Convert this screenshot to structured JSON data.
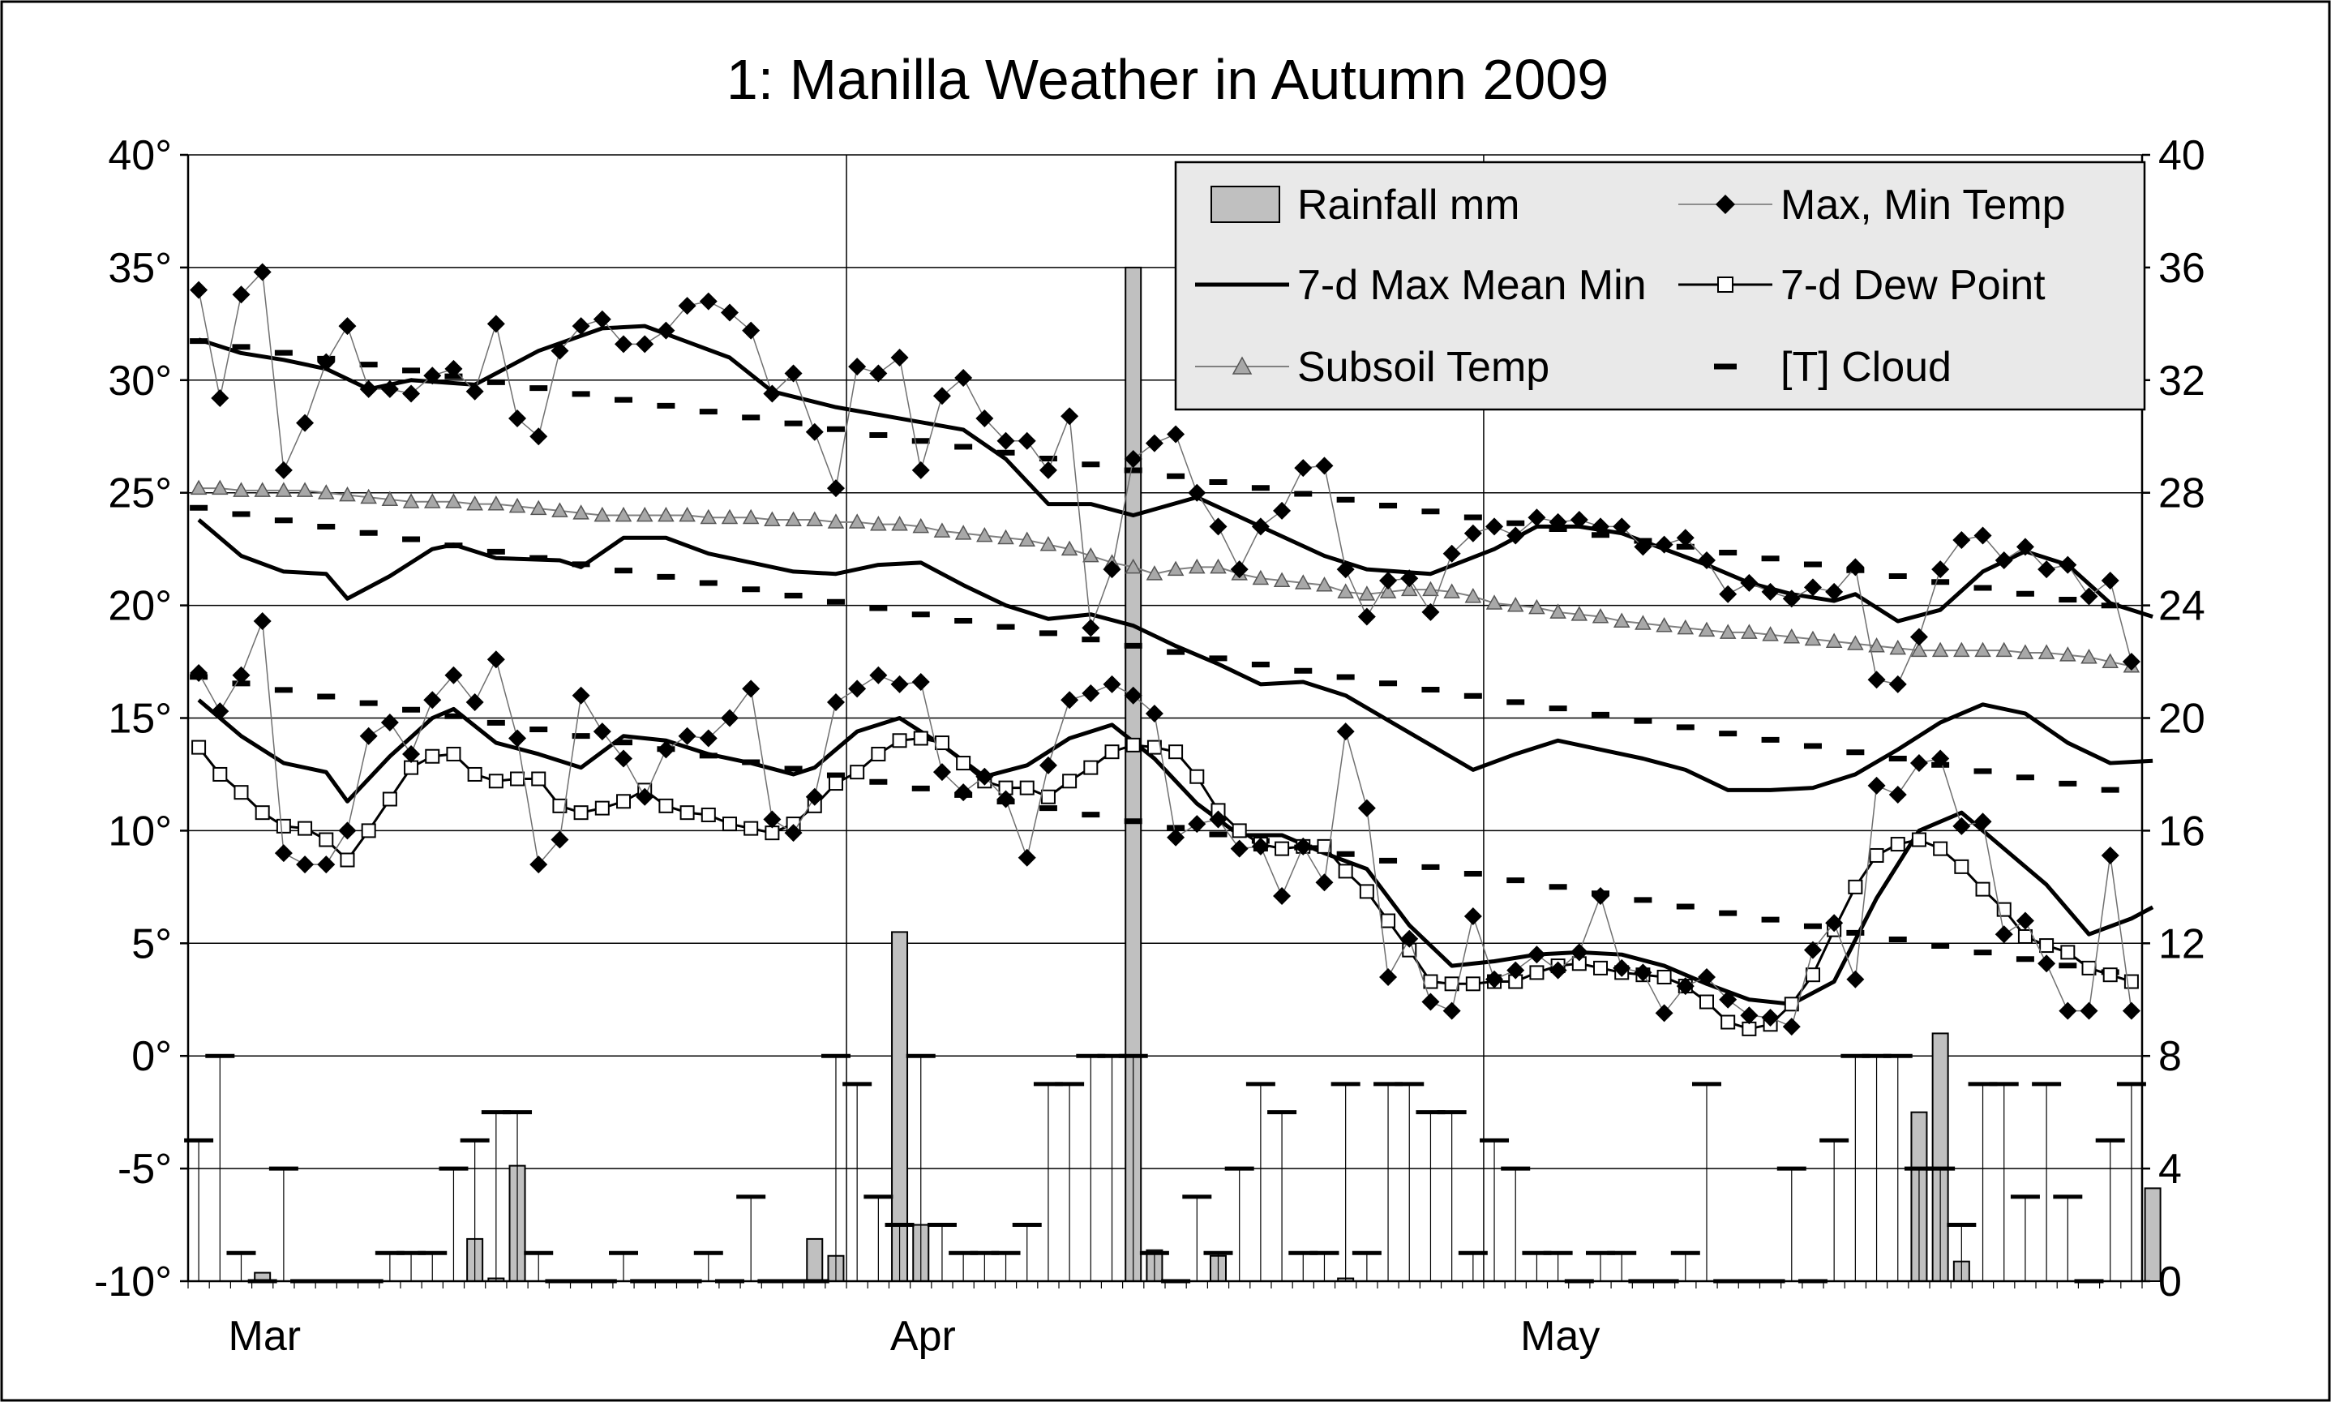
{
  "chart_data": {
    "type": "line",
    "title": "1: Manilla Weather in Autumn 2009",
    "x_axis": {
      "unit": "day",
      "range": [
        0,
        92
      ],
      "month_ticks": [
        {
          "label": "Mar",
          "day": 0
        },
        {
          "label": "Apr",
          "day": 31
        },
        {
          "label": "May",
          "day": 61
        }
      ]
    },
    "y_left": {
      "range": [
        -10,
        40
      ],
      "tick_labels": [
        "-10°",
        "-5°",
        "0°",
        "5°",
        "10°",
        "15°",
        "20°",
        "25°",
        "30°",
        "35°",
        "40°"
      ]
    },
    "y_right": {
      "range": [
        0,
        40
      ],
      "tick_labels": [
        "0",
        "4",
        "8",
        "12",
        "16",
        "20",
        "24",
        "28",
        "32",
        "36",
        "40"
      ]
    },
    "legend": {
      "position": "top-right",
      "entries": [
        {
          "label": "Rainfall mm",
          "symbol": "bar"
        },
        {
          "label": "Max, Min Temp",
          "symbol": "diamond-line"
        },
        {
          "label": "7-d Max Mean Min",
          "symbol": "thick-line"
        },
        {
          "label": "7-d Dew Point",
          "symbol": "square-line"
        },
        {
          "label": "Subsoil Temp",
          "symbol": "triangle-line"
        },
        {
          "label": "[T] Cloud",
          "symbol": "dash"
        }
      ]
    },
    "grid": true,
    "series": [
      {
        "name": "Max, Min Temp",
        "axis": "left",
        "max": [
          34.0,
          29.2,
          33.8,
          34.8,
          26.0,
          28.1,
          30.8,
          32.4,
          29.6,
          29.6,
          29.4,
          30.2,
          30.5,
          29.5,
          32.5,
          28.3,
          27.5,
          31.3,
          32.4,
          32.7,
          31.6,
          31.6,
          32.2,
          33.3,
          33.5,
          33.0,
          32.2,
          29.4,
          30.3,
          27.7,
          25.2,
          30.6,
          30.3,
          31.0,
          26.0,
          29.3,
          30.1,
          28.3,
          27.3,
          27.3,
          26.0,
          28.4,
          19.0,
          21.6,
          26.5,
          27.2,
          27.6,
          25.0,
          23.5,
          21.6,
          23.5,
          24.2,
          26.1,
          26.2,
          21.6,
          19.5,
          21.1,
          21.2,
          19.7,
          22.3,
          23.2,
          23.5,
          23.1,
          23.9,
          23.7,
          23.8,
          23.5,
          23.5,
          22.6,
          22.7,
          23.0,
          22.0,
          20.5,
          21.0,
          20.6,
          20.3,
          20.8,
          20.6,
          21.7,
          16.7,
          16.5,
          18.6,
          21.6,
          22.9,
          23.1,
          22.0,
          22.6,
          21.6,
          21.8,
          20.4,
          21.1,
          17.5
        ],
        "min": [
          17.0,
          15.3,
          16.9,
          19.3,
          9.0,
          8.5,
          8.5,
          10.0,
          14.2,
          14.8,
          13.4,
          15.8,
          16.9,
          15.7,
          17.6,
          14.1,
          8.5,
          9.6,
          16.0,
          14.4,
          13.2,
          11.5,
          13.6,
          14.2,
          14.1,
          15.0,
          16.3,
          10.5,
          9.9,
          11.5,
          15.7,
          16.3,
          16.9,
          16.5,
          16.6,
          12.6,
          11.7,
          12.4,
          11.4,
          8.8,
          12.9,
          15.8,
          16.1,
          16.5,
          16.0,
          15.2,
          9.7,
          10.3,
          10.5,
          9.2,
          9.3,
          7.1,
          9.3,
          7.7,
          14.4,
          11.0,
          3.5,
          5.2,
          2.4,
          2.0,
          6.2,
          3.4,
          3.8,
          4.5,
          3.8,
          4.6,
          7.1,
          3.9,
          3.7,
          1.9,
          3.1,
          3.5,
          2.5,
          1.8,
          1.7,
          1.3,
          4.7,
          5.9,
          3.4,
          12.0,
          11.6,
          13.0,
          13.2,
          10.2,
          10.4,
          5.4,
          6.0,
          4.1,
          2.0,
          2.0,
          8.9,
          2.0
        ]
      },
      {
        "name": "7-d Max Mean Min",
        "axis": "left",
        "max_anchors": [
          [
            0,
            31.8
          ],
          [
            2,
            31.2
          ],
          [
            4,
            30.9
          ],
          [
            6,
            30.5
          ],
          [
            8,
            29.6
          ],
          [
            10,
            30.0
          ],
          [
            13,
            29.8
          ],
          [
            16,
            31.3
          ],
          [
            19,
            32.3
          ],
          [
            21,
            32.4
          ],
          [
            23,
            31.7
          ],
          [
            25,
            31.0
          ],
          [
            27,
            29.5
          ],
          [
            30,
            28.8
          ],
          [
            33,
            28.3
          ],
          [
            36,
            27.8
          ],
          [
            38,
            26.5
          ],
          [
            40,
            24.5
          ],
          [
            42,
            24.5
          ],
          [
            44,
            24.0
          ],
          [
            47,
            24.8
          ],
          [
            50,
            23.5
          ],
          [
            53,
            22.2
          ],
          [
            55,
            21.6
          ],
          [
            58,
            21.4
          ],
          [
            61,
            22.5
          ],
          [
            63,
            23.5
          ],
          [
            65,
            23.5
          ],
          [
            67,
            23.2
          ],
          [
            69,
            22.5
          ],
          [
            71,
            21.8
          ],
          [
            73,
            21.0
          ],
          [
            75,
            20.5
          ],
          [
            77,
            20.2
          ],
          [
            78,
            20.5
          ],
          [
            80,
            19.3
          ],
          [
            82,
            19.8
          ],
          [
            84,
            21.5
          ],
          [
            86,
            22.4
          ],
          [
            88,
            21.8
          ],
          [
            90,
            20.1
          ],
          [
            92,
            19.5
          ]
        ],
        "mean_anchors": [
          [
            0,
            23.8
          ],
          [
            2,
            22.2
          ],
          [
            4,
            21.5
          ],
          [
            6,
            21.4
          ],
          [
            7,
            20.3
          ],
          [
            9,
            21.3
          ],
          [
            11,
            22.5
          ],
          [
            12,
            22.7
          ],
          [
            14,
            22.1
          ],
          [
            17,
            22.0
          ],
          [
            18,
            21.7
          ],
          [
            20,
            23.0
          ],
          [
            22,
            23.0
          ],
          [
            24,
            22.3
          ],
          [
            26,
            21.9
          ],
          [
            28,
            21.5
          ],
          [
            30,
            21.4
          ],
          [
            32,
            21.8
          ],
          [
            34,
            21.9
          ],
          [
            36,
            20.9
          ],
          [
            38,
            20.0
          ],
          [
            40,
            19.4
          ],
          [
            42,
            19.6
          ],
          [
            44,
            19.1
          ],
          [
            46,
            18.2
          ],
          [
            48,
            17.4
          ],
          [
            50,
            16.5
          ],
          [
            52,
            16.6
          ],
          [
            54,
            16.0
          ],
          [
            56,
            14.9
          ],
          [
            58,
            13.8
          ],
          [
            60,
            12.7
          ],
          [
            62,
            13.4
          ],
          [
            64,
            14.0
          ],
          [
            66,
            13.6
          ],
          [
            68,
            13.2
          ],
          [
            70,
            12.7
          ],
          [
            72,
            11.8
          ],
          [
            74,
            11.8
          ],
          [
            76,
            11.9
          ],
          [
            78,
            12.5
          ],
          [
            80,
            13.6
          ],
          [
            82,
            14.8
          ],
          [
            84,
            15.6
          ],
          [
            86,
            15.2
          ],
          [
            88,
            13.9
          ],
          [
            90,
            13.0
          ],
          [
            92,
            13.1
          ]
        ],
        "min_anchors": [
          [
            0,
            15.8
          ],
          [
            2,
            14.2
          ],
          [
            4,
            13.0
          ],
          [
            6,
            12.6
          ],
          [
            7,
            11.3
          ],
          [
            9,
            13.3
          ],
          [
            11,
            15.0
          ],
          [
            12,
            15.4
          ],
          [
            14,
            13.9
          ],
          [
            16,
            13.4
          ],
          [
            18,
            12.8
          ],
          [
            20,
            14.2
          ],
          [
            22,
            14.0
          ],
          [
            24,
            13.4
          ],
          [
            26,
            13.0
          ],
          [
            28,
            12.5
          ],
          [
            29,
            12.8
          ],
          [
            31,
            14.4
          ],
          [
            33,
            15.0
          ],
          [
            35,
            13.8
          ],
          [
            37,
            12.4
          ],
          [
            39,
            12.9
          ],
          [
            41,
            14.1
          ],
          [
            43,
            14.7
          ],
          [
            45,
            13.2
          ],
          [
            47,
            11.2
          ],
          [
            49,
            9.8
          ],
          [
            51,
            9.8
          ],
          [
            53,
            9.0
          ],
          [
            55,
            8.3
          ],
          [
            57,
            5.8
          ],
          [
            59,
            4.0
          ],
          [
            61,
            4.2
          ],
          [
            63,
            4.5
          ],
          [
            65,
            4.6
          ],
          [
            67,
            4.5
          ],
          [
            69,
            4.0
          ],
          [
            71,
            3.2
          ],
          [
            73,
            2.5
          ],
          [
            75,
            2.3
          ],
          [
            77,
            3.3
          ],
          [
            79,
            7.0
          ],
          [
            81,
            10.0
          ],
          [
            83,
            10.8
          ],
          [
            85,
            9.2
          ],
          [
            87,
            7.6
          ],
          [
            89,
            5.4
          ],
          [
            91,
            6.1
          ],
          [
            92,
            6.6
          ]
        ]
      },
      {
        "name": "7-d Dew Point",
        "axis": "left",
        "values": [
          13.7,
          12.5,
          11.7,
          10.8,
          10.2,
          10.1,
          9.6,
          8.7,
          10.0,
          11.4,
          12.8,
          13.3,
          13.4,
          12.5,
          12.2,
          12.3,
          12.3,
          11.1,
          10.8,
          11.0,
          11.3,
          11.8,
          11.1,
          10.8,
          10.7,
          10.3,
          10.1,
          9.9,
          10.3,
          11.1,
          12.1,
          12.6,
          13.4,
          14.0,
          14.1,
          13.9,
          13.0,
          12.2,
          11.9,
          11.9,
          11.5,
          12.2,
          12.8,
          13.5,
          13.8,
          13.7,
          13.5,
          12.4,
          10.9,
          10.0,
          9.4,
          9.2,
          9.3,
          9.3,
          8.2,
          7.3,
          6.0,
          4.7,
          3.3,
          3.2,
          3.2,
          3.3,
          3.3,
          3.7,
          4.0,
          4.1,
          3.9,
          3.7,
          3.6,
          3.5,
          3.1,
          2.4,
          1.5,
          1.2,
          1.4,
          2.3,
          3.6,
          5.6,
          7.5,
          8.9,
          9.4,
          9.6,
          9.2,
          8.4,
          7.4,
          6.5,
          5.3,
          4.9,
          4.6,
          3.9,
          3.6,
          3.3
        ]
      },
      {
        "name": "Subsoil Temp",
        "axis": "left",
        "values": [
          25.2,
          25.2,
          25.1,
          25.1,
          25.1,
          25.1,
          25.0,
          24.9,
          24.8,
          24.7,
          24.6,
          24.6,
          24.6,
          24.5,
          24.5,
          24.4,
          24.3,
          24.2,
          24.1,
          24.0,
          24.0,
          24.0,
          24.0,
          24.0,
          23.9,
          23.9,
          23.9,
          23.8,
          23.8,
          23.8,
          23.7,
          23.7,
          23.6,
          23.6,
          23.5,
          23.3,
          23.2,
          23.1,
          23.0,
          22.9,
          22.7,
          22.5,
          22.2,
          21.9,
          21.7,
          21.4,
          21.6,
          21.7,
          21.7,
          21.4,
          21.2,
          21.1,
          21.0,
          20.9,
          20.6,
          20.5,
          20.6,
          20.7,
          20.7,
          20.6,
          20.4,
          20.1,
          20.0,
          19.9,
          19.7,
          19.6,
          19.5,
          19.3,
          19.2,
          19.1,
          19.0,
          18.9,
          18.8,
          18.8,
          18.7,
          18.6,
          18.5,
          18.4,
          18.3,
          18.2,
          18.1,
          18.0,
          18.0,
          18.0,
          18.0,
          18.0,
          17.9,
          17.9,
          17.8,
          17.7,
          17.5,
          17.3
        ]
      },
      {
        "name": "Rainfall mm",
        "axis": "right",
        "values": [
          0,
          0,
          0,
          0.3,
          0,
          0,
          0,
          0,
          0,
          0,
          0,
          0,
          0,
          1.5,
          0.1,
          4.1,
          0,
          0,
          0,
          0,
          0,
          0,
          0,
          0,
          0,
          0,
          0,
          0,
          0,
          1.5,
          0.9,
          0,
          0,
          12.4,
          2,
          0,
          0,
          0,
          0,
          0,
          0,
          0,
          0,
          0,
          36,
          1.1,
          0,
          0,
          0.9,
          0,
          0,
          0,
          0,
          0,
          0.1,
          0,
          0,
          0,
          0,
          0,
          0,
          0,
          0,
          0,
          0,
          0,
          0,
          0,
          0,
          0,
          0,
          0,
          0,
          0,
          0,
          0,
          0,
          0,
          0,
          0,
          0,
          6,
          8.8,
          0.7,
          0,
          0,
          0,
          0,
          0,
          0,
          0,
          0,
          3.3
        ]
      },
      {
        "name": "[T] Cloud",
        "axis": "right",
        "values": [
          5,
          8,
          1,
          0,
          4,
          0,
          0,
          0,
          0,
          1,
          1,
          1,
          4,
          5,
          6,
          6,
          1,
          0,
          0,
          0,
          1,
          0,
          0,
          0,
          1,
          0,
          3,
          0,
          0,
          0,
          8,
          7,
          3,
          2,
          8,
          2,
          1,
          1,
          1,
          2,
          7,
          7,
          8,
          8,
          8,
          1,
          0,
          3,
          1,
          4,
          7,
          6,
          1,
          1,
          7,
          1,
          7,
          7,
          6,
          6,
          1,
          5,
          4,
          1,
          1,
          0,
          1,
          1,
          0,
          0,
          1,
          7,
          0,
          0,
          0,
          4,
          0,
          5,
          8,
          8,
          8,
          4,
          4,
          2,
          7,
          7,
          3,
          7,
          3,
          0,
          5,
          7
        ]
      }
    ],
    "trend_dashes": {
      "axis": "left",
      "max_normal": [
        [
          0,
          31.8
        ],
        [
          92,
          19.8
        ]
      ],
      "mean_normal": [
        [
          0,
          24.4
        ],
        [
          92,
          11.6
        ]
      ],
      "min_normal": [
        [
          0,
          16.9
        ],
        [
          92,
          3.5
        ]
      ]
    }
  }
}
